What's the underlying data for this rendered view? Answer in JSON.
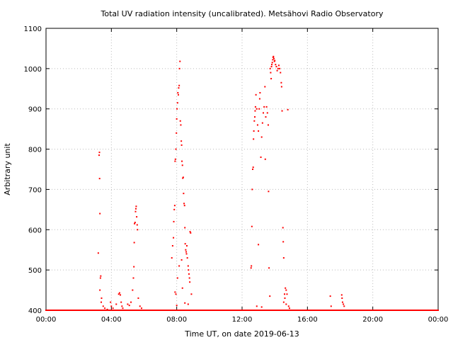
{
  "chart_data": {
    "type": "scatter",
    "title": "Total UV radiation intensity (uncalibrated). Metsähovi Radio Observatory",
    "xlabel": "Time UT, on date 2019-06-13",
    "ylabel": "Arbitrary unit",
    "x_ticks": [
      "00:00",
      "04:00",
      "08:00",
      "12:00",
      "16:00",
      "20:00",
      "00:00"
    ],
    "x_tick_hours": [
      0,
      4,
      8,
      12,
      16,
      20,
      24
    ],
    "xlim": [
      0,
      24
    ],
    "ylim": [
      400,
      1100
    ],
    "y_ticks": [
      400,
      500,
      600,
      700,
      800,
      900,
      1000,
      1100
    ],
    "grid": true,
    "marker_color": "#ff0000",
    "baseline_value": 400,
    "series": [
      {
        "values": [
          [
            3.25,
            785
          ],
          [
            3.27,
            792
          ],
          [
            3.28,
            727
          ],
          [
            3.3,
            640
          ],
          [
            3.2,
            542
          ],
          [
            3.35,
            485
          ],
          [
            3.33,
            480
          ],
          [
            3.3,
            450
          ],
          [
            3.4,
            430
          ],
          [
            3.38,
            420
          ],
          [
            3.5,
            410
          ],
          [
            3.6,
            405
          ],
          [
            3.75,
            402
          ],
          [
            4.0,
            410
          ],
          [
            4.1,
            405
          ],
          [
            3.95,
            420
          ],
          [
            4.3,
            415
          ],
          [
            4.45,
            440
          ],
          [
            4.5,
            443
          ],
          [
            4.55,
            438
          ],
          [
            4.6,
            420
          ],
          [
            4.65,
            410
          ],
          [
            4.7,
            405
          ],
          [
            5.0,
            415
          ],
          [
            5.1,
            412
          ],
          [
            5.2,
            420
          ],
          [
            5.3,
            450
          ],
          [
            5.35,
            480
          ],
          [
            5.38,
            508
          ],
          [
            5.4,
            568
          ],
          [
            5.42,
            615
          ],
          [
            5.45,
            618
          ],
          [
            5.48,
            645
          ],
          [
            5.5,
            652
          ],
          [
            5.52,
            658
          ],
          [
            5.55,
            632
          ],
          [
            5.58,
            612
          ],
          [
            5.6,
            600
          ],
          [
            5.65,
            430
          ],
          [
            5.75,
            410
          ],
          [
            5.85,
            405
          ],
          [
            7.7,
            530
          ],
          [
            7.75,
            560
          ],
          [
            7.8,
            580
          ],
          [
            7.82,
            620
          ],
          [
            7.85,
            650
          ],
          [
            7.88,
            660
          ],
          [
            7.9,
            770
          ],
          [
            7.92,
            775
          ],
          [
            7.95,
            800
          ],
          [
            7.98,
            840
          ],
          [
            8.0,
            875
          ],
          [
            8.02,
            900
          ],
          [
            8.05,
            915
          ],
          [
            8.07,
            940
          ],
          [
            8.1,
            935
          ],
          [
            8.12,
            952
          ],
          [
            8.15,
            958
          ],
          [
            8.17,
            1000
          ],
          [
            8.2,
            1018
          ],
          [
            8.22,
            870
          ],
          [
            8.25,
            860
          ],
          [
            8.28,
            820
          ],
          [
            8.3,
            810
          ],
          [
            8.32,
            770
          ],
          [
            8.35,
            760
          ],
          [
            8.37,
            728
          ],
          [
            8.4,
            730
          ],
          [
            8.42,
            690
          ],
          [
            8.45,
            665
          ],
          [
            8.48,
            660
          ],
          [
            8.5,
            605
          ],
          [
            8.52,
            565
          ],
          [
            8.55,
            550
          ],
          [
            8.58,
            545
          ],
          [
            8.6,
            540
          ],
          [
            8.62,
            560
          ],
          [
            8.65,
            530
          ],
          [
            8.7,
            510
          ],
          [
            8.72,
            500
          ],
          [
            8.75,
            490
          ],
          [
            8.78,
            480
          ],
          [
            8.8,
            470
          ],
          [
            8.82,
            595
          ],
          [
            8.85,
            592
          ],
          [
            8.9,
            440
          ],
          [
            8.7,
            415
          ],
          [
            8.5,
            418
          ],
          [
            8.0,
            412
          ],
          [
            7.9,
            445
          ],
          [
            7.95,
            440
          ],
          [
            8.05,
            480
          ],
          [
            8.15,
            510
          ],
          [
            8.3,
            525
          ],
          [
            8.35,
            455
          ],
          [
            12.55,
            505
          ],
          [
            12.57,
            510
          ],
          [
            12.6,
            608
          ],
          [
            12.62,
            700
          ],
          [
            12.65,
            750
          ],
          [
            12.68,
            755
          ],
          [
            12.7,
            825
          ],
          [
            12.72,
            845
          ],
          [
            12.75,
            870
          ],
          [
            12.78,
            880
          ],
          [
            12.8,
            895
          ],
          [
            12.82,
            905
          ],
          [
            12.85,
            935
          ],
          [
            12.9,
            900
          ],
          [
            12.95,
            860
          ],
          [
            13.0,
            845
          ],
          [
            13.05,
            900
          ],
          [
            13.08,
            925
          ],
          [
            13.1,
            940
          ],
          [
            13.15,
            780
          ],
          [
            13.2,
            830
          ],
          [
            13.25,
            865
          ],
          [
            13.3,
            890
          ],
          [
            13.35,
            905
          ],
          [
            13.4,
            955
          ],
          [
            13.42,
            775
          ],
          [
            13.45,
            880
          ],
          [
            13.5,
            905
          ],
          [
            13.55,
            890
          ],
          [
            13.6,
            860
          ],
          [
            13.62,
            695
          ],
          [
            13.65,
            505
          ],
          [
            13.7,
            435
          ],
          [
            13.72,
            1000
          ],
          [
            13.75,
            990
          ],
          [
            13.78,
            975
          ],
          [
            13.8,
            1005
          ],
          [
            13.82,
            1010
          ],
          [
            13.85,
            1015
          ],
          [
            13.88,
            1022
          ],
          [
            13.9,
            1028
          ],
          [
            13.92,
            1030
          ],
          [
            13.95,
            1025
          ],
          [
            13.98,
            1018
          ],
          [
            14.0,
            1020
          ],
          [
            14.05,
            1010
          ],
          [
            14.1,
            1005
          ],
          [
            14.15,
            995
          ],
          [
            14.2,
            1000
          ],
          [
            14.25,
            1008
          ],
          [
            14.3,
            1000
          ],
          [
            14.35,
            990
          ],
          [
            14.4,
            965
          ],
          [
            14.42,
            955
          ],
          [
            14.45,
            895
          ],
          [
            14.5,
            605
          ],
          [
            14.52,
            570
          ],
          [
            14.55,
            530
          ],
          [
            14.6,
            440
          ],
          [
            14.62,
            430
          ],
          [
            14.65,
            455
          ],
          [
            14.7,
            450
          ],
          [
            14.75,
            440
          ],
          [
            14.8,
            898
          ],
          [
            14.85,
            410
          ],
          [
            14.9,
            405
          ],
          [
            13.0,
            563
          ],
          [
            12.9,
            410
          ],
          [
            13.2,
            408
          ],
          [
            14.55,
            420
          ],
          [
            14.7,
            415
          ],
          [
            17.4,
            435
          ],
          [
            17.45,
            410
          ],
          [
            18.1,
            438
          ],
          [
            18.12,
            430
          ],
          [
            18.15,
            420
          ],
          [
            18.2,
            415
          ],
          [
            18.25,
            410
          ]
        ]
      }
    ]
  }
}
